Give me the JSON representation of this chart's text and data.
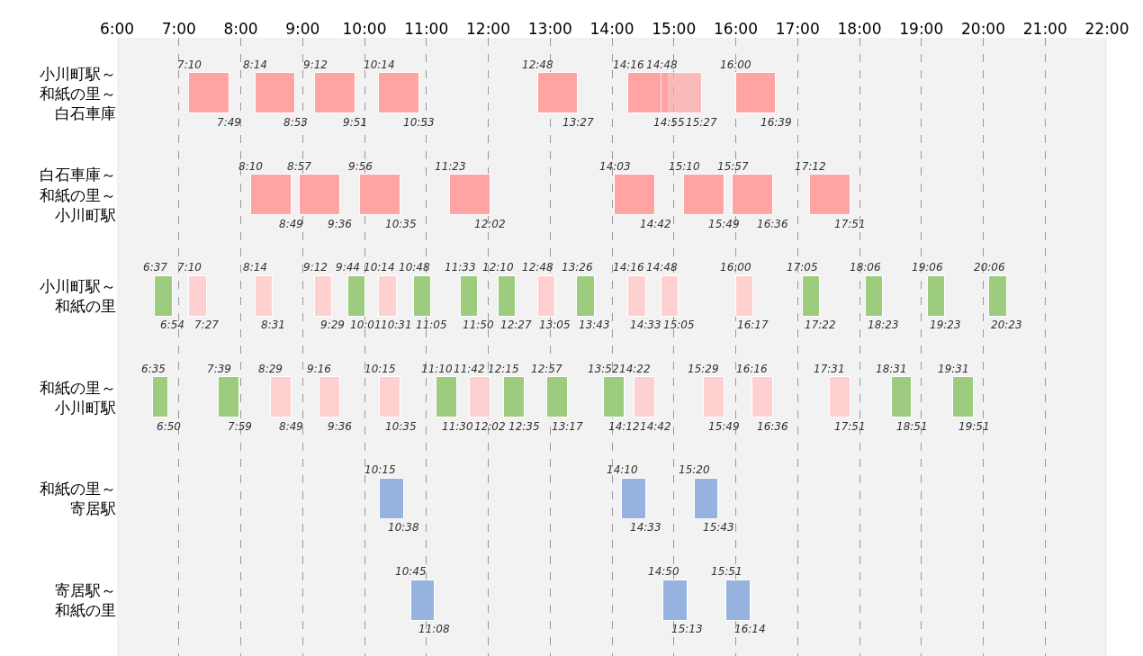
{
  "chart_data": {
    "type": "bar",
    "orientation": "horizontal",
    "grid": "x",
    "xlim": [
      6,
      22
    ],
    "xticks": [
      {
        "value": 6,
        "label": "6:00"
      },
      {
        "value": 7,
        "label": "7:00"
      },
      {
        "value": 8,
        "label": "8:00"
      },
      {
        "value": 9,
        "label": "9:00"
      },
      {
        "value": 10,
        "label": "10:00"
      },
      {
        "value": 11,
        "label": "11:00"
      },
      {
        "value": 12,
        "label": "12:00"
      },
      {
        "value": 13,
        "label": "13:00"
      },
      {
        "value": 14,
        "label": "14:00"
      },
      {
        "value": 15,
        "label": "15:00"
      },
      {
        "value": 16,
        "label": "16:00"
      },
      {
        "value": 17,
        "label": "17:00"
      },
      {
        "value": 18,
        "label": "18:00"
      },
      {
        "value": 19,
        "label": "19:00"
      },
      {
        "value": 20,
        "label": "20:00"
      },
      {
        "value": 21,
        "label": "21:00"
      },
      {
        "value": 22,
        "label": "22:00"
      }
    ],
    "categories": [
      "小川町駅～和紙の里～白石車庫",
      "白石車庫～和紙の里～小川町駅",
      "小川町駅～和紙の里",
      "和紙の里～小川町駅",
      "和紙の里～寄居駅",
      "寄居駅～和紙の里"
    ],
    "series": [
      {
        "base": [
          7.1667,
          8.1667,
          6.6167,
          6.5833,
          10.25,
          10.75
        ],
        "values": [
          0.65,
          0.65,
          0.2833,
          0.25,
          0.3833,
          0.3833
        ],
        "colors": [
          "#ffa3a3",
          "#ffa3a3",
          "#9dcc7f",
          "#9dcc7f",
          "#96b3e0",
          "#96b3e0"
        ],
        "value_labels": [
          "7:49",
          "8:49",
          "6:54",
          "6:50",
          "10:38",
          "11:08"
        ]
      },
      {
        "base": [
          8.2333,
          8.95,
          7.1667,
          7.65,
          14.1667,
          14.8333
        ],
        "values": [
          0.65,
          0.65,
          0.2833,
          0.3333,
          0.3833,
          0.3833
        ],
        "colors": [
          "#ffa3a3",
          "#ffa3a3",
          "#ffd0d0",
          "#9dcc7f",
          "#96b3e0",
          "#96b3e0"
        ],
        "value_labels": [
          "8:53",
          "9:36",
          "7:27",
          "7:59",
          "14:33",
          "15:13"
        ]
      },
      {
        "base": [
          9.2,
          9.9333,
          8.2333,
          8.4833,
          15.3333,
          15.85
        ],
        "values": [
          0.65,
          0.65,
          0.2833,
          0.3333,
          0.3833,
          0.3833
        ],
        "colors": [
          "#ffa3a3",
          "#ffa3a3",
          "#ffd0d0",
          "#ffd0d0",
          "#96b3e0",
          "#96b3e0"
        ],
        "value_labels": [
          "9:51",
          "10:35",
          "8:31",
          "8:49",
          "15:43",
          "16:14"
        ]
      },
      {
        "base": [
          10.2333,
          11.3833,
          9.2,
          9.2667,
          null,
          null
        ],
        "values": [
          0.65,
          0.65,
          0.2833,
          0.3333,
          null,
          null
        ],
        "colors": [
          "#ffa3a3",
          "#ffa3a3",
          "#ffd0d0",
          "#ffd0d0",
          null,
          null
        ],
        "value_labels": [
          "10:53",
          "12:02",
          "9:29",
          "9:36",
          null,
          null
        ]
      },
      {
        "base": [
          12.8,
          14.05,
          9.7333,
          10.25,
          null,
          null
        ],
        "values": [
          0.65,
          0.65,
          0.2833,
          0.3333,
          null,
          null
        ],
        "colors": [
          "#ffa3a3",
          "#ffa3a3",
          "#9dcc7f",
          "#ffd0d0",
          null,
          null
        ],
        "value_labels": [
          "13:27",
          "14:42",
          "10:01",
          "10:35",
          null,
          null
        ]
      },
      {
        "base": [
          14.2667,
          15.1667,
          10.2333,
          11.1667,
          null,
          null
        ],
        "values": [
          0.65,
          0.65,
          0.2833,
          0.3333,
          null,
          null
        ],
        "colors": [
          "#ffa3a3",
          "#ffa3a3",
          "#ffd0d0",
          "#9dcc7f",
          null,
          null
        ],
        "value_labels": [
          "14:55",
          "15:49",
          "10:31",
          "11:30",
          null,
          null
        ]
      },
      {
        "base": [
          14.8,
          15.95,
          10.8,
          11.7,
          null,
          null
        ],
        "values": [
          0.65,
          0.65,
          0.2833,
          0.3333,
          null,
          null
        ],
        "colors": [
          "#ffa3a3",
          "#ffa3a3",
          "#9dcc7f",
          "#ffd0d0",
          null,
          null
        ],
        "value_labels": [
          "15:27",
          "16:36",
          "11:05",
          "12:02",
          null,
          null
        ]
      },
      {
        "base": [
          16,
          17.2,
          11.55,
          12.25,
          null,
          null
        ],
        "values": [
          0.65,
          0.65,
          0.2833,
          0.3333,
          null,
          null
        ],
        "colors": [
          "#ffa3a3",
          "#ffa3a3",
          "#9dcc7f",
          "#9dcc7f",
          null,
          null
        ],
        "value_labels": [
          "16:39",
          "17:51",
          "11:50",
          "12:35",
          null,
          null
        ]
      },
      {
        "base": [
          null,
          null,
          12.1667,
          12.95,
          null,
          null
        ],
        "values": [
          null,
          null,
          0.2833,
          0.3333,
          null,
          null
        ],
        "colors": [
          null,
          null,
          "#9dcc7f",
          "#9dcc7f",
          null,
          null
        ],
        "value_labels": [
          null,
          null,
          "12:27",
          "13:17",
          null,
          null
        ]
      },
      {
        "base": [
          null,
          null,
          12.8,
          13.8667,
          null,
          null
        ],
        "values": [
          null,
          null,
          0.2833,
          0.3333,
          null,
          null
        ],
        "colors": [
          null,
          null,
          "#ffd0d0",
          "#9dcc7f",
          null,
          null
        ],
        "value_labels": [
          null,
          null,
          "13:05",
          "14:12",
          null,
          null
        ]
      },
      {
        "base": [
          null,
          null,
          13.4333,
          14.3667,
          null,
          null
        ],
        "values": [
          null,
          null,
          0.2833,
          0.3333,
          null,
          null
        ],
        "colors": [
          null,
          null,
          "#9dcc7f",
          "#ffd0d0",
          null,
          null
        ],
        "value_labels": [
          null,
          null,
          "13:43",
          "14:42",
          null,
          null
        ]
      },
      {
        "base": [
          null,
          null,
          14.2667,
          15.4833,
          null,
          null
        ],
        "values": [
          null,
          null,
          0.2833,
          0.3333,
          null,
          null
        ],
        "colors": [
          null,
          null,
          "#ffd0d0",
          "#ffd0d0",
          null,
          null
        ],
        "value_labels": [
          null,
          null,
          "14:33",
          "15:49",
          null,
          null
        ]
      },
      {
        "base": [
          null,
          null,
          14.8,
          16.2667,
          null,
          null
        ],
        "values": [
          null,
          null,
          0.2833,
          0.3333,
          null,
          null
        ],
        "colors": [
          null,
          null,
          "#ffd0d0",
          "#ffd0d0",
          null,
          null
        ],
        "value_labels": [
          null,
          null,
          "15:05",
          "16:36",
          null,
          null
        ]
      },
      {
        "base": [
          null,
          null,
          16,
          17.5167,
          null,
          null
        ],
        "values": [
          null,
          null,
          0.2833,
          0.3333,
          null,
          null
        ],
        "colors": [
          null,
          null,
          "#ffd0d0",
          "#ffd0d0",
          null,
          null
        ],
        "value_labels": [
          null,
          null,
          "16:17",
          "17:51",
          null,
          null
        ]
      },
      {
        "base": [
          null,
          null,
          17.0833,
          18.5167,
          null,
          null
        ],
        "values": [
          null,
          null,
          0.2833,
          0.3333,
          null,
          null
        ],
        "colors": [
          null,
          null,
          "#9dcc7f",
          "#9dcc7f",
          null,
          null
        ],
        "value_labels": [
          null,
          null,
          "17:22",
          "18:51",
          null,
          null
        ]
      },
      {
        "base": [
          null,
          null,
          18.1,
          19.5167,
          null,
          null
        ],
        "values": [
          null,
          null,
          0.2833,
          0.3333,
          null,
          null
        ],
        "colors": [
          null,
          null,
          "#9dcc7f",
          "#9dcc7f",
          null,
          null
        ],
        "value_labels": [
          null,
          null,
          "18:23",
          "19:51",
          null,
          null
        ]
      },
      {
        "base": [
          null,
          null,
          19.1,
          null,
          null,
          null
        ],
        "values": [
          null,
          null,
          0.2833,
          null,
          null,
          null
        ],
        "colors": [
          null,
          null,
          "#9dcc7f",
          null,
          null,
          null
        ],
        "value_labels": [
          null,
          null,
          "19:23",
          null,
          null,
          null
        ]
      },
      {
        "base": [
          null,
          null,
          20.1,
          null,
          null,
          null
        ],
        "values": [
          null,
          null,
          0.2833,
          null,
          null,
          null
        ],
        "colors": [
          null,
          null,
          "#9dcc7f",
          null,
          null,
          null
        ],
        "value_labels": [
          null,
          null,
          "20:23",
          null,
          null,
          null
        ]
      }
    ],
    "annotations": [
      {
        "text": "7:10",
        "x": 7.1667,
        "y": "小川町駅～和紙の里～白石車庫"
      },
      {
        "text": "8:14",
        "x": 8.2333,
        "y": "小川町駅～和紙の里～白石車庫"
      },
      {
        "text": "9:12",
        "x": 9.2,
        "y": "小川町駅～和紙の里～白石車庫"
      },
      {
        "text": "10:14",
        "x": 10.2333,
        "y": "小川町駅～和紙の里～白石車庫"
      },
      {
        "text": "12:48",
        "x": 12.8,
        "y": "小川町駅～和紙の里～白石車庫"
      },
      {
        "text": "14:16",
        "x": 14.2667,
        "y": "小川町駅～和紙の里～白石車庫"
      },
      {
        "text": "14:48",
        "x": 14.8,
        "y": "小川町駅～和紙の里～白石車庫"
      },
      {
        "text": "16:00",
        "x": 16,
        "y": "小川町駅～和紙の里～白石車庫"
      },
      {
        "text": "8:10",
        "x": 8.1667,
        "y": "白石車庫～和紙の里～小川町駅"
      },
      {
        "text": "8:57",
        "x": 8.95,
        "y": "白石車庫～和紙の里～小川町駅"
      },
      {
        "text": "9:56",
        "x": 9.9333,
        "y": "白石車庫～和紙の里～小川町駅"
      },
      {
        "text": "11:23",
        "x": 11.3833,
        "y": "白石車庫～和紙の里～小川町駅"
      },
      {
        "text": "14:03",
        "x": 14.05,
        "y": "白石車庫～和紙の里～小川町駅"
      },
      {
        "text": "15:10",
        "x": 15.1667,
        "y": "白石車庫～和紙の里～小川町駅"
      },
      {
        "text": "15:57",
        "x": 15.95,
        "y": "白石車庫～和紙の里～小川町駅"
      },
      {
        "text": "17:12",
        "x": 17.2,
        "y": "白石車庫～和紙の里～小川町駅"
      },
      {
        "text": "6:37",
        "x": 6.6167,
        "y": "小川町駅～和紙の里"
      },
      {
        "text": "7:10",
        "x": 7.1667,
        "y": "小川町駅～和紙の里"
      },
      {
        "text": "8:14",
        "x": 8.2333,
        "y": "小川町駅～和紙の里"
      },
      {
        "text": "9:12",
        "x": 9.2,
        "y": "小川町駅～和紙の里"
      },
      {
        "text": "9:44",
        "x": 9.7333,
        "y": "小川町駅～和紙の里"
      },
      {
        "text": "10:14",
        "x": 10.2333,
        "y": "小川町駅～和紙の里"
      },
      {
        "text": "10:48",
        "x": 10.8,
        "y": "小川町駅～和紙の里"
      },
      {
        "text": "11:33",
        "x": 11.55,
        "y": "小川町駅～和紙の里"
      },
      {
        "text": "12:10",
        "x": 12.1667,
        "y": "小川町駅～和紙の里"
      },
      {
        "text": "12:48",
        "x": 12.8,
        "y": "小川町駅～和紙の里"
      },
      {
        "text": "13:26",
        "x": 13.4333,
        "y": "小川町駅～和紙の里"
      },
      {
        "text": "14:16",
        "x": 14.2667,
        "y": "小川町駅～和紙の里"
      },
      {
        "text": "14:48",
        "x": 14.8,
        "y": "小川町駅～和紙の里"
      },
      {
        "text": "16:00",
        "x": 16,
        "y": "小川町駅～和紙の里"
      },
      {
        "text": "17:05",
        "x": 17.0833,
        "y": "小川町駅～和紙の里"
      },
      {
        "text": "18:06",
        "x": 18.1,
        "y": "小川町駅～和紙の里"
      },
      {
        "text": "19:06",
        "x": 19.1,
        "y": "小川町駅～和紙の里"
      },
      {
        "text": "20:06",
        "x": 20.1,
        "y": "小川町駅～和紙の里"
      },
      {
        "text": "6:35",
        "x": 6.5833,
        "y": "和紙の里～小川町駅"
      },
      {
        "text": "7:39",
        "x": 7.65,
        "y": "和紙の里～小川町駅"
      },
      {
        "text": "8:29",
        "x": 8.4833,
        "y": "和紙の里～小川町駅"
      },
      {
        "text": "9:16",
        "x": 9.2667,
        "y": "和紙の里～小川町駅"
      },
      {
        "text": "10:15",
        "x": 10.25,
        "y": "和紙の里～小川町駅"
      },
      {
        "text": "11:10",
        "x": 11.1667,
        "y": "和紙の里～小川町駅"
      },
      {
        "text": "11:42",
        "x": 11.7,
        "y": "和紙の里～小川町駅"
      },
      {
        "text": "12:15",
        "x": 12.25,
        "y": "和紙の里～小川町駅"
      },
      {
        "text": "12:57",
        "x": 12.95,
        "y": "和紙の里～小川町駅"
      },
      {
        "text": "13:52",
        "x": 13.8667,
        "y": "和紙の里～小川町駅"
      },
      {
        "text": "14:22",
        "x": 14.3667,
        "y": "和紙の里～小川町駅"
      },
      {
        "text": "15:29",
        "x": 15.4833,
        "y": "和紙の里～小川町駅"
      },
      {
        "text": "16:16",
        "x": 16.2667,
        "y": "和紙の里～小川町駅"
      },
      {
        "text": "17:31",
        "x": 17.5167,
        "y": "和紙の里～小川町駅"
      },
      {
        "text": "18:31",
        "x": 18.5167,
        "y": "和紙の里～小川町駅"
      },
      {
        "text": "19:31",
        "x": 19.5167,
        "y": "和紙の里～小川町駅"
      },
      {
        "text": "10:15",
        "x": 10.25,
        "y": "和紙の里～寄居駅"
      },
      {
        "text": "14:10",
        "x": 14.1667,
        "y": "和紙の里～寄居駅"
      },
      {
        "text": "15:20",
        "x": 15.3333,
        "y": "和紙の里～寄居駅"
      },
      {
        "text": "10:45",
        "x": 10.75,
        "y": "寄居駅～和紙の里"
      },
      {
        "text": "14:50",
        "x": 14.8333,
        "y": "寄居駅～和紙の里"
      },
      {
        "text": "15:51",
        "x": 15.85,
        "y": "寄居駅～和紙の里"
      }
    ]
  }
}
